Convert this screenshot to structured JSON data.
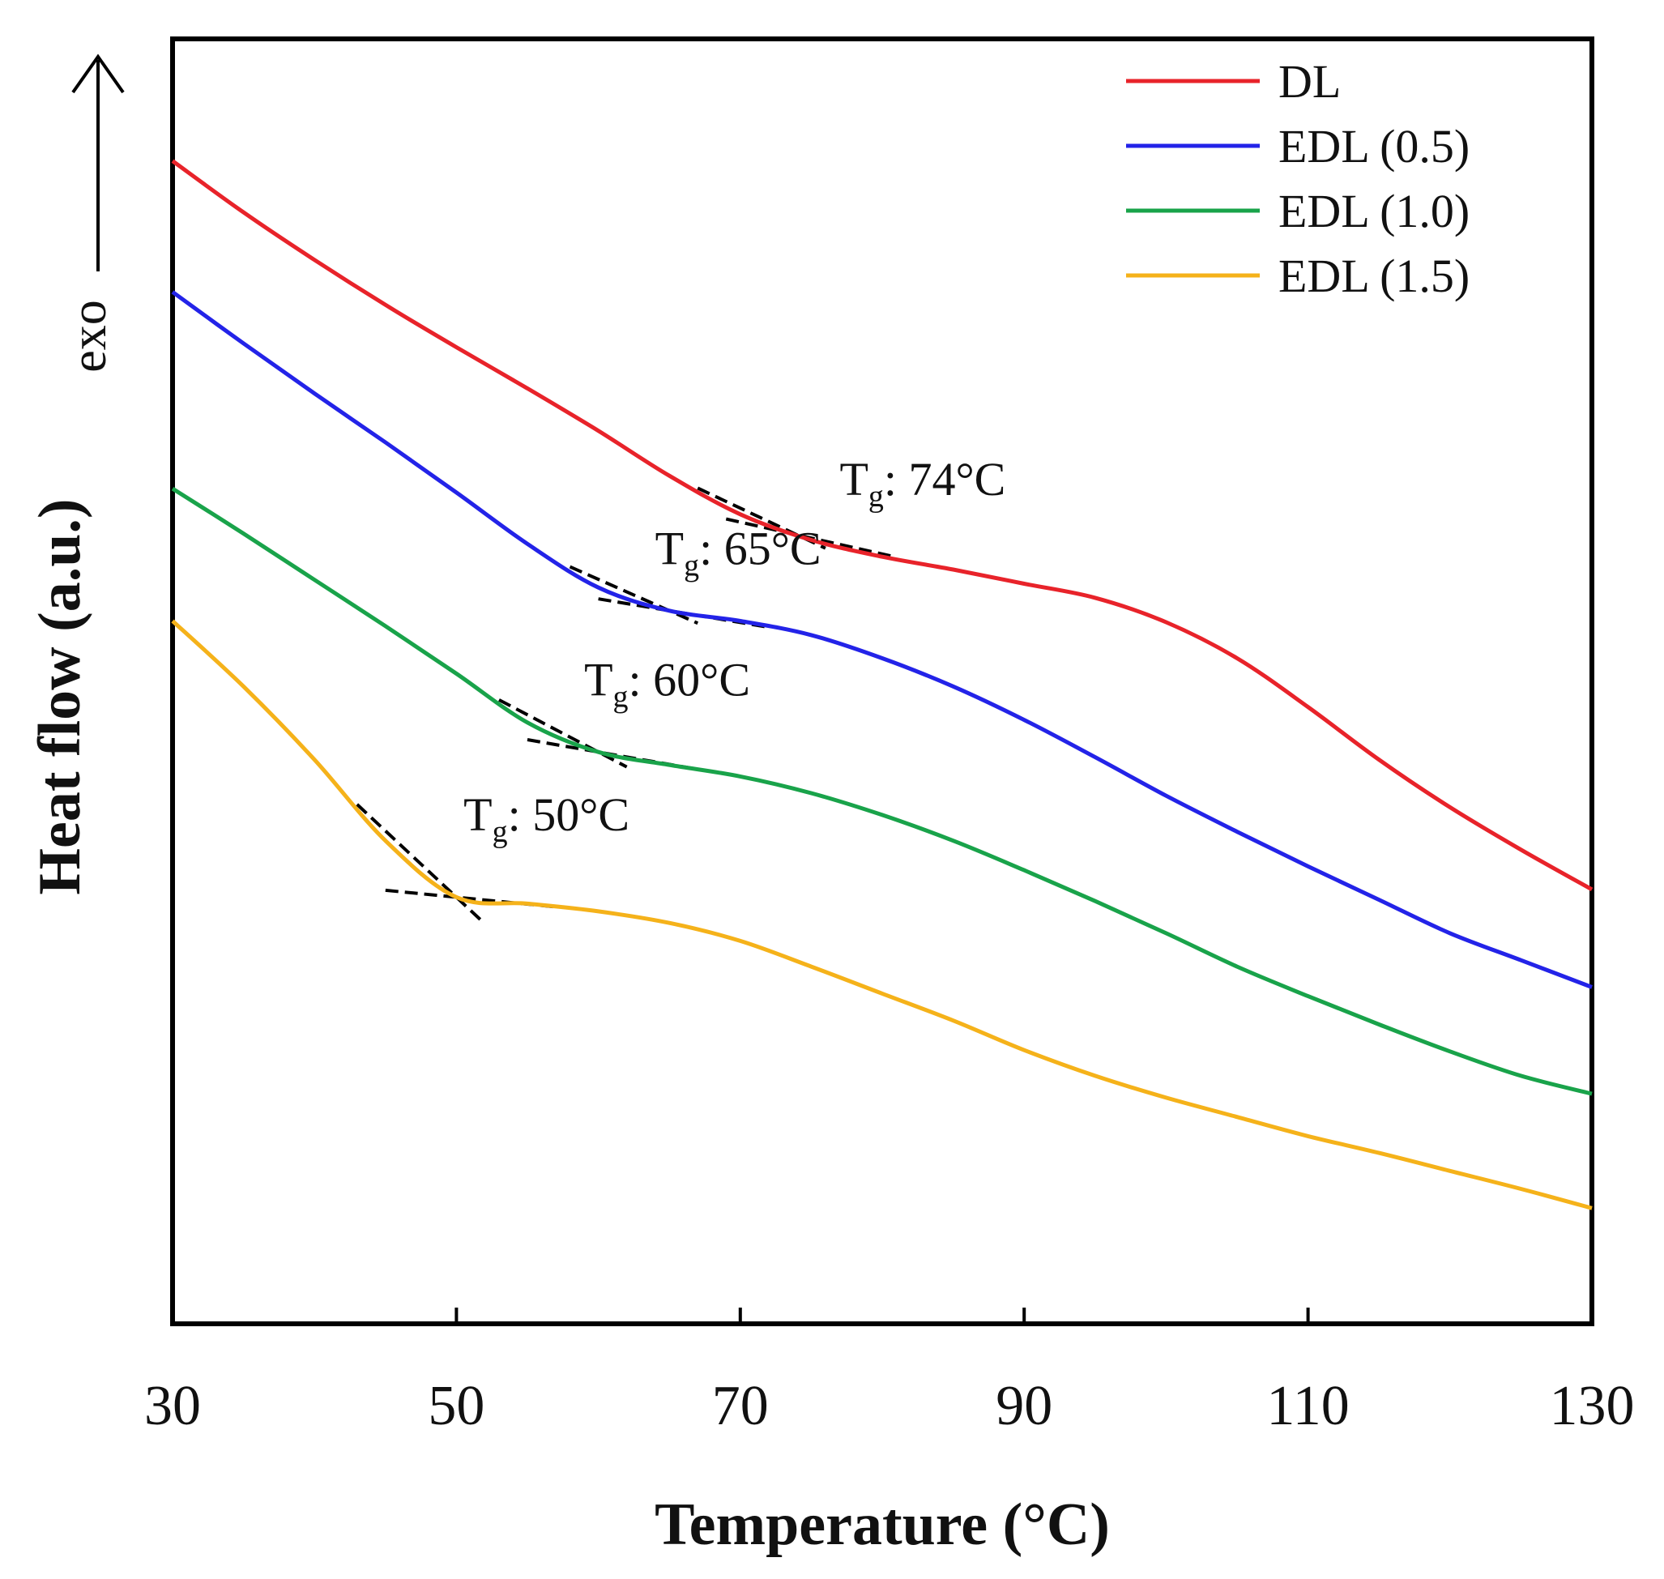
{
  "chart_data": {
    "type": "line",
    "title": "",
    "xlabel": "Temperature (°C)",
    "ylabel": "Heat flow (a.u.)",
    "y_direction_label": "exo",
    "xlim": [
      30,
      130
    ],
    "ylim": [
      0,
      100
    ],
    "xticks": [
      "30",
      "50",
      "70",
      "90",
      "110",
      "130"
    ],
    "y_ticks_shown": false,
    "legend_position": "top-right",
    "series": [
      {
        "name": "DL",
        "color": "#e8232a",
        "x": [
          30,
          35,
          40,
          45,
          50,
          55,
          60,
          65,
          70,
          75,
          80,
          85,
          90,
          95,
          100,
          105,
          110,
          115,
          120,
          125,
          130
        ],
        "y": [
          90.5,
          86.5,
          82.8,
          79.3,
          76.0,
          72.8,
          69.5,
          66.0,
          63.0,
          61.0,
          59.7,
          58.7,
          57.6,
          56.5,
          54.6,
          51.8,
          48.0,
          43.9,
          40.2,
          36.9,
          33.8
        ]
      },
      {
        "name": "EDL (0.5)",
        "color": "#2323e8",
        "x": [
          30,
          35,
          40,
          45,
          50,
          55,
          60,
          65,
          70,
          75,
          80,
          85,
          90,
          95,
          100,
          105,
          110,
          115,
          120,
          125,
          130
        ],
        "y": [
          80.3,
          76.3,
          72.4,
          68.6,
          64.7,
          60.7,
          57.3,
          55.5,
          54.7,
          53.6,
          51.8,
          49.6,
          47.0,
          44.1,
          41.1,
          38.3,
          35.6,
          33.0,
          30.4,
          28.3,
          26.2
        ]
      },
      {
        "name": "EDL (1.0)",
        "color": "#19a34a",
        "x": [
          30,
          35,
          40,
          45,
          50,
          55,
          60,
          65,
          70,
          75,
          80,
          85,
          90,
          95,
          100,
          105,
          110,
          115,
          120,
          125,
          130
        ],
        "y": [
          65.0,
          61.5,
          57.9,
          54.3,
          50.6,
          46.8,
          44.5,
          43.5,
          42.6,
          41.3,
          39.6,
          37.6,
          35.3,
          32.9,
          30.4,
          27.8,
          25.5,
          23.3,
          21.2,
          19.3,
          17.9
        ]
      },
      {
        "name": "EDL (1.5)",
        "color": "#f5b21a",
        "x": [
          30,
          35,
          40,
          45,
          50,
          55,
          60,
          65,
          70,
          75,
          80,
          85,
          90,
          95,
          100,
          105,
          110,
          115,
          120,
          125,
          130
        ],
        "y": [
          54.7,
          49.6,
          43.9,
          37.6,
          33.2,
          32.7,
          32.1,
          31.2,
          29.8,
          27.8,
          25.7,
          23.6,
          21.3,
          19.3,
          17.6,
          16.1,
          14.6,
          13.3,
          11.9,
          10.5,
          9.0
        ]
      }
    ],
    "annotations": [
      {
        "series": "DL",
        "text_main": "T",
        "text_sub": "g",
        "text_rest": ": 74°C",
        "tg": 74,
        "label_x": 77,
        "label_y": 64.5
      },
      {
        "series": "EDL (0.5)",
        "text_main": "T",
        "text_sub": "g",
        "text_rest": ": 65°C",
        "tg": 65,
        "label_x": 64,
        "label_y": 59.1
      },
      {
        "series": "EDL (1.0)",
        "text_main": "T",
        "text_sub": "g",
        "text_rest": ": 60°C",
        "tg": 60,
        "label_x": 59,
        "label_y": 48.9
      },
      {
        "series": "EDL (1.5)",
        "text_main": "T",
        "text_sub": "g",
        "text_rest": ": 50°C",
        "tg": 50,
        "label_x": 50.5,
        "label_y": 38.4
      }
    ]
  }
}
